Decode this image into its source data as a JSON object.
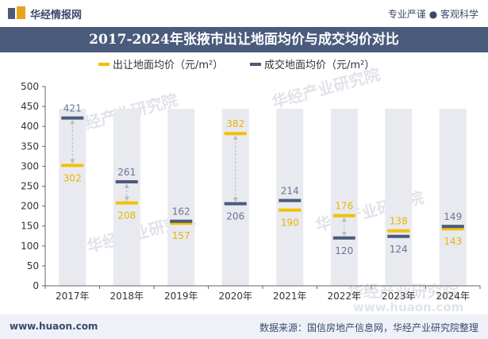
{
  "header": {
    "brand": "华经情报网",
    "tagline": "专业严谨 ● 客观科学"
  },
  "title": "2017-2024年张掖市出让地面均价与成交均价对比",
  "footer": {
    "website": "www.huaon.com",
    "source": "数据来源：国信房地产信息网，华经产业研究院整理"
  },
  "watermark": "华经产业研究院",
  "watermark_url": "www.huaon.com",
  "colors": {
    "series_a": "#f2c100",
    "series_b": "#4a5b7c",
    "band": "#e8eaf0",
    "arrow": "#bbbbbb",
    "label_a": "#e8b400",
    "label_b": "#6b7592"
  },
  "chart_data": {
    "type": "line",
    "categories": [
      "2017年",
      "2018年",
      "2019年",
      "2020年",
      "2021年",
      "2022年",
      "2023年",
      "2024年"
    ],
    "series": [
      {
        "name": "出让地面均价（元/m²）",
        "values": [
          302,
          208,
          157,
          382,
          190,
          176,
          138,
          143
        ]
      },
      {
        "name": "成交地面均价（元/m²）",
        "values": [
          421,
          261,
          162,
          206,
          214,
          120,
          124,
          149
        ]
      }
    ],
    "yticks": [
      0,
      50,
      100,
      150,
      200,
      250,
      300,
      350,
      400,
      450,
      500
    ],
    "ylim": [
      0,
      500
    ],
    "legend_position": "top",
    "grid": false
  }
}
